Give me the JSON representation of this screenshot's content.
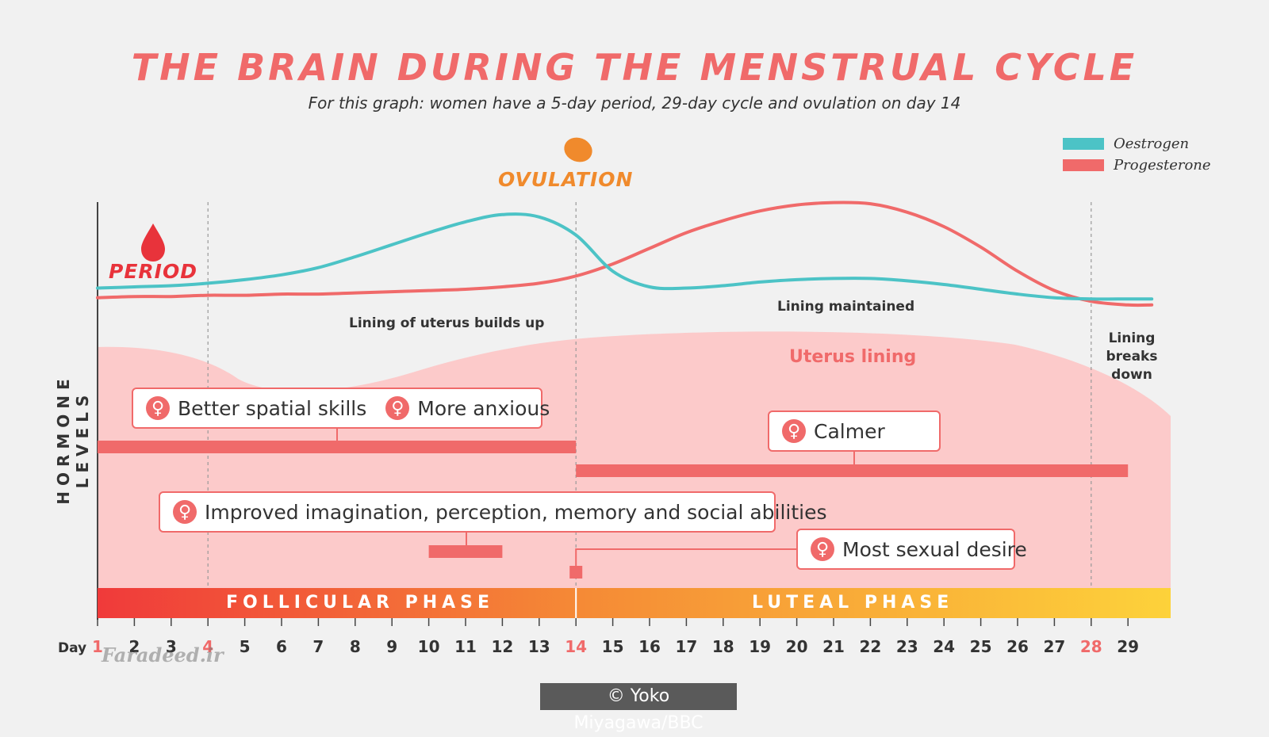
{
  "title": "THE BRAIN DURING THE MENSTRUAL CYCLE",
  "subtitle": "For this graph: women have a 5-day period, 29-day cycle and ovulation on day 14",
  "y_axis_label": "HORMONE LEVELS",
  "day_label": "Day",
  "markers": {
    "ovulation": "OVULATION",
    "period": "PERIOD"
  },
  "annotations": {
    "lining_builds": "Lining of uterus builds up",
    "lining_maintained": "Lining maintained",
    "lining_breaks": "Lining breaks down",
    "uterus_lining": "Uterus lining"
  },
  "effects": {
    "spatial": "Better spatial skills",
    "anxious": "More anxious",
    "calmer": "Calmer",
    "imagination": "Improved imagination, perception, memory and social abilities",
    "desire": "Most sexual desire"
  },
  "phases": {
    "follicular": "FOLLICULAR PHASE",
    "luteal": "LUTEAL PHASE"
  },
  "watermark": "Faradeed.ir",
  "credit": "© Yoko Miyagawa/BBC",
  "colors": {
    "oestrogen": "#4cc3c6",
    "progesterone": "#f06a6a",
    "uterus_lining": "#fccaca",
    "period": "#e8333b",
    "ovulation": "#f08a2c",
    "phase_start": "#f03a3a",
    "phase_mid": "#f58a36",
    "phase_end": "#fdd23a"
  },
  "chart_data": {
    "type": "line",
    "title": "THE BRAIN DURING THE MENSTRUAL CYCLE",
    "ylabel": "HORMONE LEVELS",
    "x": [
      1,
      2,
      3,
      4,
      5,
      6,
      7,
      8,
      9,
      10,
      11,
      12,
      13,
      14,
      15,
      16,
      17,
      18,
      19,
      20,
      21,
      22,
      23,
      24,
      25,
      26,
      27,
      28,
      29
    ],
    "x_ticks": [
      "1",
      "2",
      "3",
      "4",
      "5",
      "6",
      "7",
      "8",
      "9",
      "10",
      "11",
      "12",
      "13",
      "14",
      "15",
      "16",
      "17",
      "18",
      "19",
      "20",
      "21",
      "22",
      "23",
      "24",
      "25",
      "26",
      "27",
      "28",
      "29"
    ],
    "highlighted_days": [
      1,
      4,
      14,
      28
    ],
    "series": [
      {
        "name": "Oestrogen",
        "values": [
          24,
          25,
          26,
          28,
          31,
          35,
          41,
          50,
          60,
          70,
          79,
          85,
          83,
          68,
          38,
          25,
          24,
          26,
          29,
          31,
          32,
          32,
          30,
          27,
          23,
          19,
          16,
          15,
          15
        ]
      },
      {
        "name": "Progesterone",
        "values": [
          16,
          17,
          17,
          18,
          18,
          19,
          19,
          20,
          21,
          22,
          23,
          25,
          28,
          34,
          44,
          57,
          70,
          80,
          88,
          93,
          95,
          94,
          87,
          75,
          58,
          38,
          22,
          13,
          10
        ]
      }
    ],
    "ylim": [
      0,
      100
    ],
    "xlim": [
      1,
      30
    ],
    "phase_boundary_day": 14,
    "grid_lines_days": [
      4,
      14,
      28
    ]
  }
}
